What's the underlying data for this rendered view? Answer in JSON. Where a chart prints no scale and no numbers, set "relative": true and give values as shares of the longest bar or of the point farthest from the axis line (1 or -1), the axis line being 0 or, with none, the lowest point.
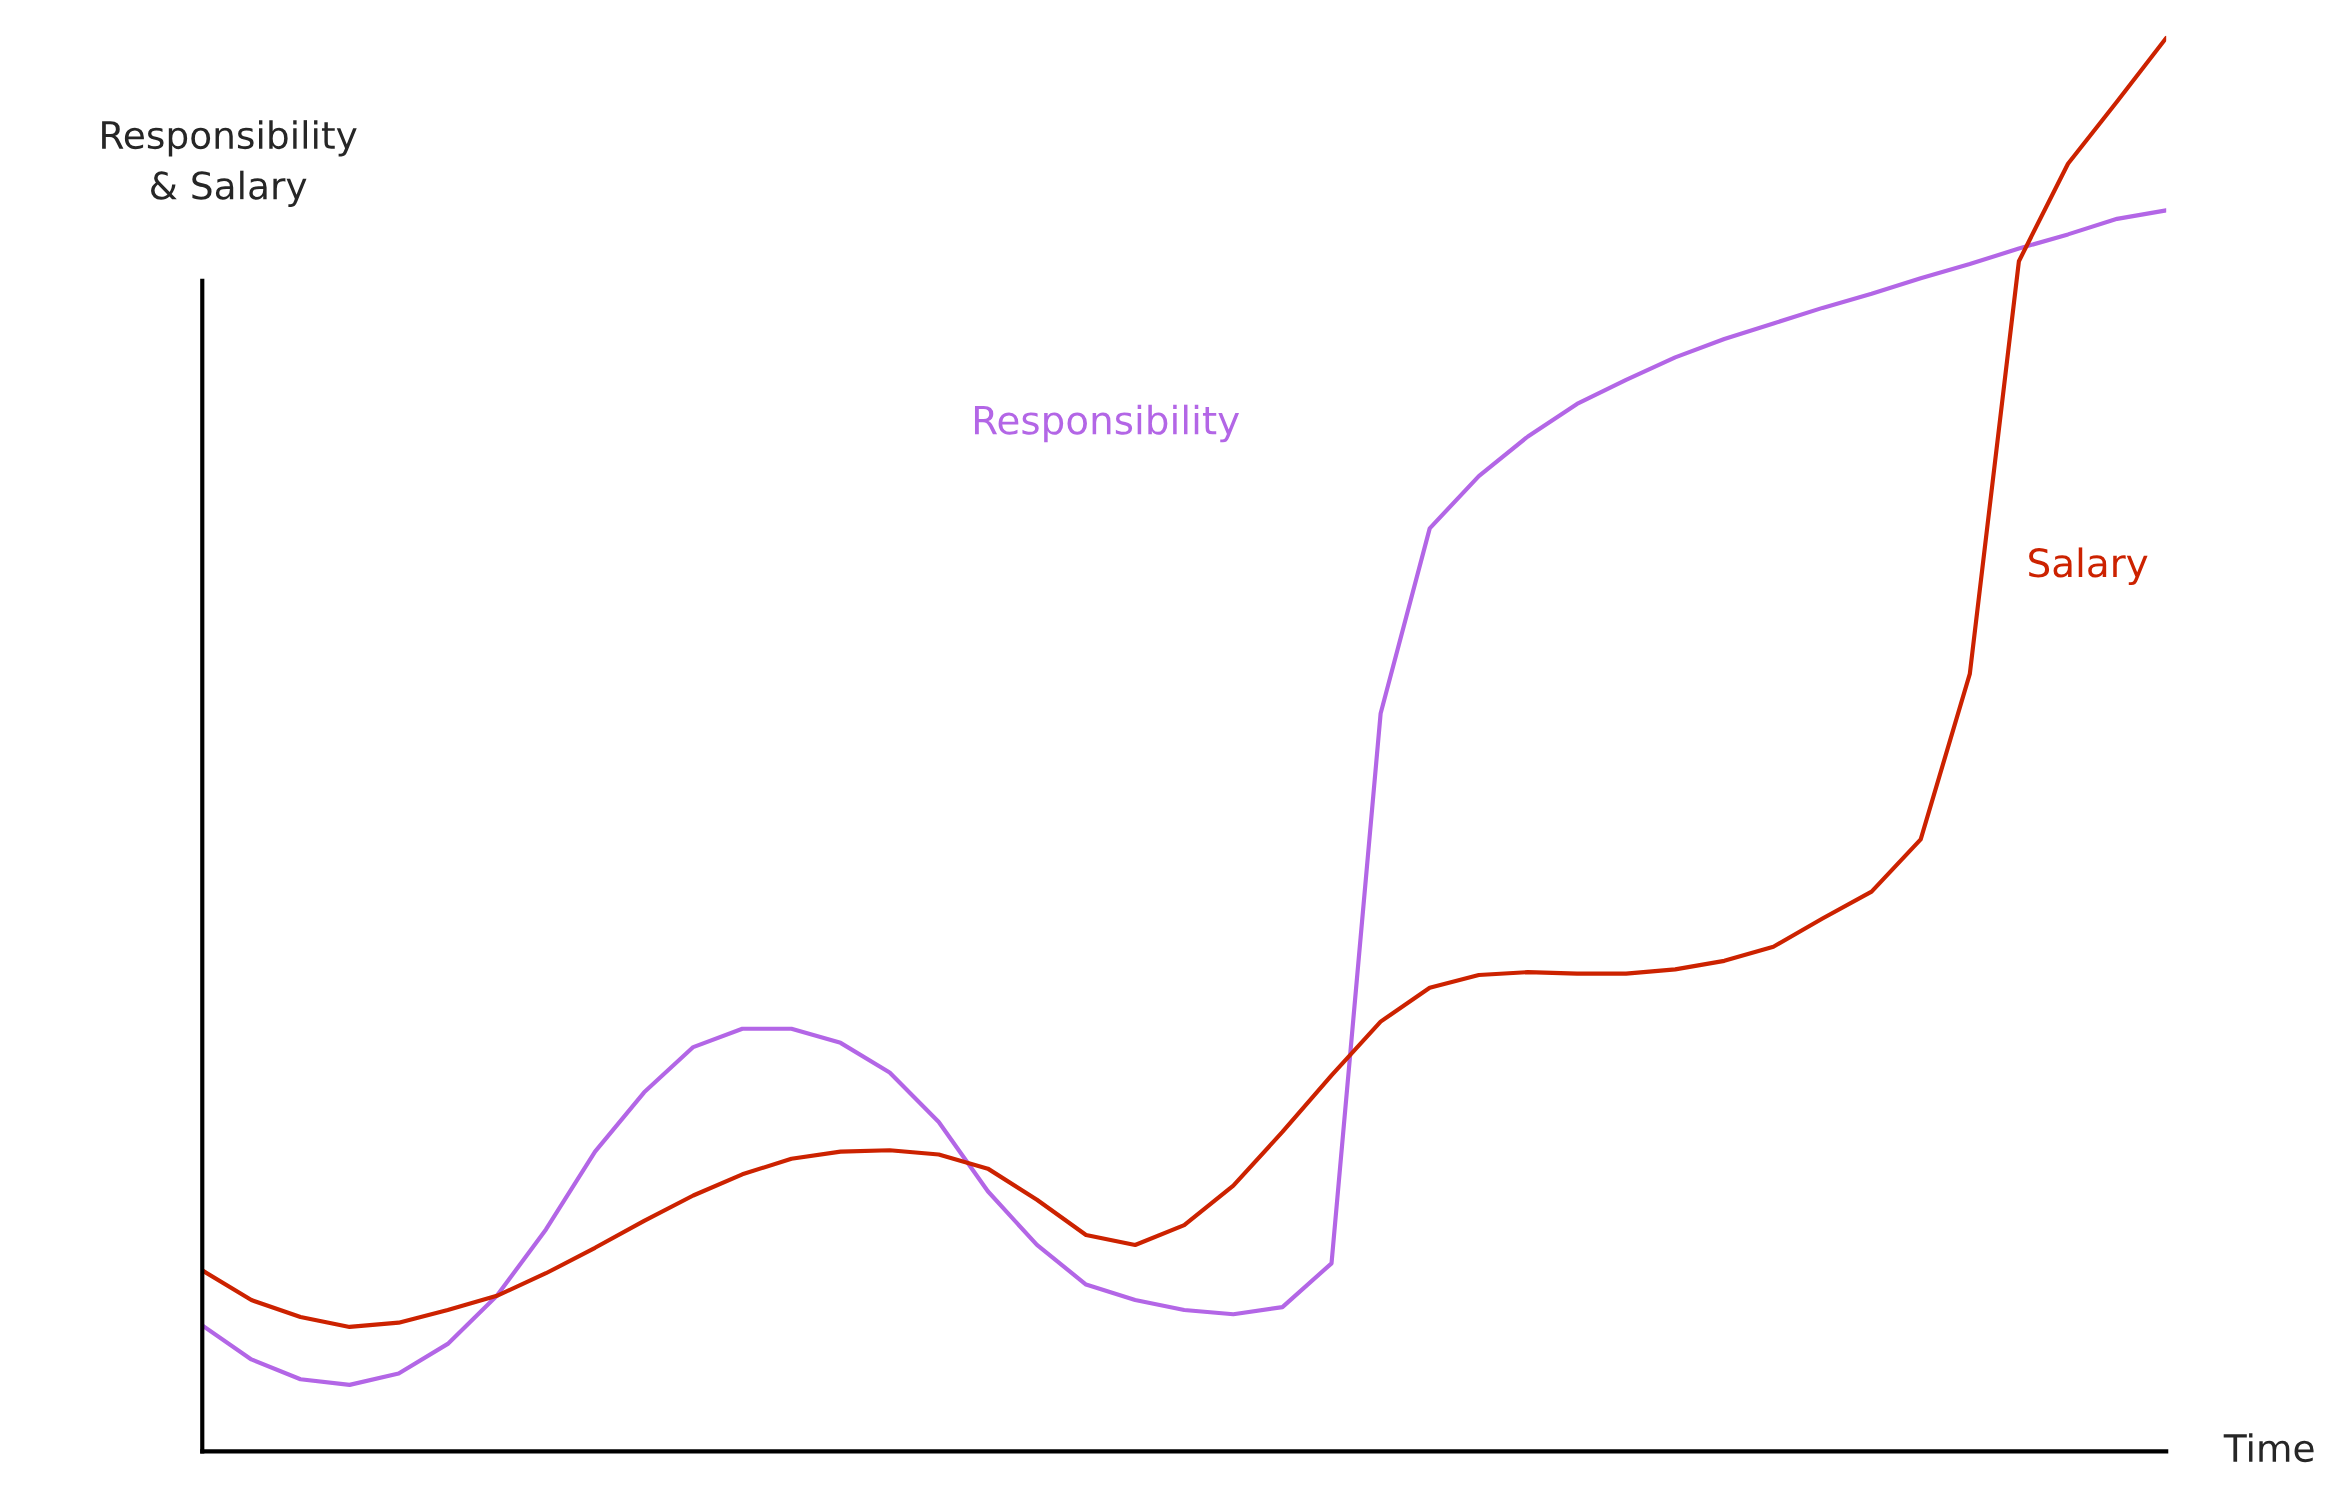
{
  "chart_data": {
    "type": "line",
    "relative": true,
    "xlabel": "Time",
    "ylabel": "Responsibility\n& Salary",
    "grid": false,
    "legend": false,
    "categories": [
      null,
      null,
      null,
      null,
      null,
      null,
      null,
      null,
      null,
      null,
      null,
      null,
      null,
      null,
      null,
      null,
      null,
      null,
      null,
      null,
      null,
      null,
      null,
      null,
      null,
      null,
      null,
      null,
      null,
      null,
      null,
      null,
      null,
      null,
      null,
      null,
      null,
      null,
      null,
      null,
      null
    ],
    "series": [
      {
        "name": "Responsibility",
        "color": "#b366e6",
        "values": [
          0.089,
          0.065,
          0.051,
          0.047,
          0.055,
          0.076,
          0.11,
          0.157,
          0.212,
          0.254,
          0.286,
          0.299,
          0.299,
          0.289,
          0.268,
          0.233,
          0.184,
          0.146,
          0.118,
          0.107,
          0.1,
          0.097,
          0.102,
          0.133,
          0.522,
          0.653,
          0.69,
          0.718,
          0.741,
          0.758,
          0.774,
          0.787,
          0.798,
          0.809,
          0.819,
          0.83,
          0.84,
          0.851,
          0.861,
          0.872,
          0.878
        ]
      },
      {
        "name": "Salary",
        "color": "#cc2200",
        "values": [
          0.128,
          0.107,
          0.095,
          0.088,
          0.091,
          0.1,
          0.11,
          0.126,
          0.144,
          0.163,
          0.181,
          0.196,
          0.207,
          0.212,
          0.213,
          0.21,
          0.2,
          0.178,
          0.153,
          0.146,
          0.16,
          0.188,
          0.226,
          0.266,
          0.304,
          0.328,
          0.337,
          0.339,
          0.338,
          0.338,
          0.341,
          0.347,
          0.357,
          0.377,
          0.396,
          0.433,
          0.55,
          0.842,
          0.911,
          0.955,
          1.0
        ]
      }
    ]
  }
}
